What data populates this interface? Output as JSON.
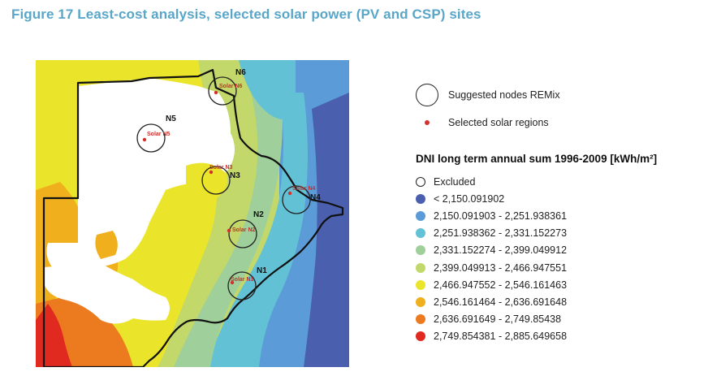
{
  "figure": {
    "title": "Figure 17 Least-cost analysis, selected solar power (PV and CSP) sites"
  },
  "map": {
    "nodes": [
      {
        "id": "N6",
        "label": "N6",
        "solar_label": "Solar N6"
      },
      {
        "id": "N5",
        "label": "N5",
        "solar_label": "Solar N5"
      },
      {
        "id": "N3",
        "label": "N3",
        "solar_label": "Solar N3"
      },
      {
        "id": "N4",
        "label": "N4",
        "solar_label": "Solar N4"
      },
      {
        "id": "N2",
        "label": "N2",
        "solar_label": "Solar N2"
      },
      {
        "id": "N1",
        "label": "N1",
        "solar_label": "Solar N1"
      }
    ]
  },
  "legend": {
    "suggested_nodes": "Suggested nodes REMix",
    "selected_regions": "Selected solar regions",
    "dni_title": "DNI long term annual sum 1996-2009 [kWh/m²]",
    "classes": [
      {
        "label": "Excluded",
        "color": "#ffffff"
      },
      {
        "label": "< 2,150.091902",
        "color": "#4a5fae"
      },
      {
        "label": "2,150.091903 - 2,251.938361",
        "color": "#5b9bd8"
      },
      {
        "label": "2,251.938362 - 2,331.152273",
        "color": "#63c1d6"
      },
      {
        "label": "2,331.152274 - 2,399.049912",
        "color": "#9fcf9a"
      },
      {
        "label": "2,399.049913 - 2,466.947551",
        "color": "#c3d86a"
      },
      {
        "label": "2,466.947552 - 2,546.161463",
        "color": "#eae52a"
      },
      {
        "label": "2,546.161464 - 2,636.691648",
        "color": "#f0b01e"
      },
      {
        "label": "2,636.691649 - 2,749.85438",
        "color": "#ec7a1e"
      },
      {
        "label": "2,749.854381 - 2,885.649658",
        "color": "#e02a20"
      }
    ]
  }
}
